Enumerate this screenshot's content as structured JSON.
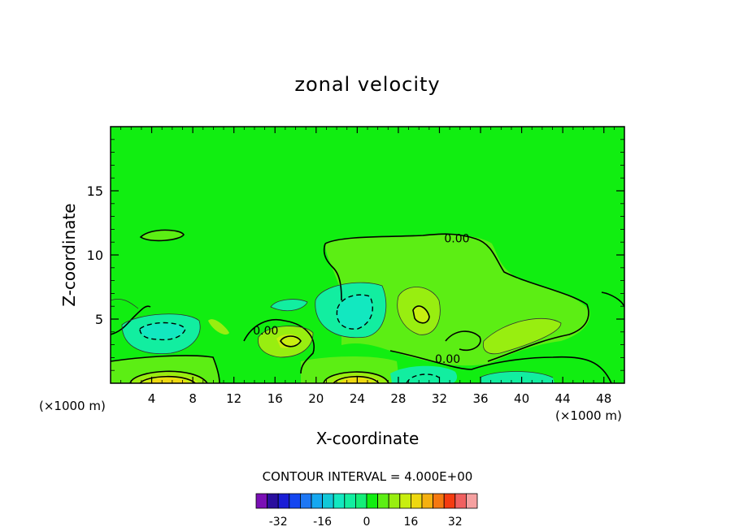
{
  "chart_data": {
    "type": "contour",
    "title": "zonal velocity",
    "xlabel": "X-coordinate",
    "ylabel": "Z-coordinate",
    "x_unit_left": "(×1000 m)",
    "x_unit_right": "(×1000 m)",
    "xlim": [
      0,
      50
    ],
    "ylim": [
      0,
      20
    ],
    "x_ticks": [
      4,
      8,
      12,
      16,
      20,
      24,
      28,
      32,
      36,
      40,
      44,
      48
    ],
    "y_ticks": [
      5,
      10,
      15
    ],
    "contour_interval_text": "CONTOUR INTERVAL = 4.000E+00",
    "contour_interval": 4,
    "contour_labels": [
      {
        "text": "0.00",
        "x": 33.7,
        "y": 11.3
      },
      {
        "text": "0.00",
        "x": 15.1,
        "y": 4.1
      },
      {
        "text": "0.00",
        "x": 32.8,
        "y": 1.9
      }
    ],
    "background_color": "#11ee11",
    "features": [
      {
        "kind": "zero_region",
        "x": [
          1.2,
          3.0
        ],
        "y": [
          11.2,
          12.1
        ],
        "level": 0
      },
      {
        "kind": "zero_region",
        "x": [
          22.0,
          44.0
        ],
        "y": [
          3.5,
          11.4
        ],
        "level": 0
      },
      {
        "kind": "min",
        "x": 5.5,
        "y": 3.8,
        "level": -8
      },
      {
        "kind": "min",
        "x": 23.0,
        "y": 5.0,
        "level": -12
      },
      {
        "kind": "max",
        "x": 18.0,
        "y": 3.1,
        "level": 8
      },
      {
        "kind": "max",
        "x": 30.0,
        "y": 5.3,
        "level": 8
      },
      {
        "kind": "max",
        "x": 39.0,
        "y": 3.3,
        "level": 4
      },
      {
        "kind": "max",
        "x": 6.0,
        "y": 0.3,
        "level": 16
      },
      {
        "kind": "max",
        "x": 24.0,
        "y": 0.3,
        "level": 16
      },
      {
        "kind": "min",
        "x": 31.0,
        "y": 0.4,
        "level": -8
      },
      {
        "kind": "min",
        "x": 38.5,
        "y": 0.4,
        "level": -8
      }
    ],
    "colorbar": {
      "levels": [
        -36,
        -32,
        -28,
        -24,
        -20,
        -16,
        -12,
        -8,
        -4,
        0,
        4,
        8,
        12,
        16,
        20,
        24,
        28,
        32,
        36
      ],
      "colors": [
        "#7a0fb5",
        "#2a0f9e",
        "#1a1ed6",
        "#1446f0",
        "#1e78f5",
        "#16a8f0",
        "#12c8d8",
        "#12e8c0",
        "#12eea0",
        "#14ee78",
        "#11ee11",
        "#5cee14",
        "#98ee10",
        "#c8ee10",
        "#eed810",
        "#f5b010",
        "#f57810",
        "#f53c10",
        "#f06060",
        "#f5a0a0"
      ],
      "tick_labels": [
        "-32",
        "-16",
        "0",
        "16",
        "32"
      ],
      "tick_values": [
        -32,
        -16,
        0,
        16,
        32
      ]
    }
  }
}
